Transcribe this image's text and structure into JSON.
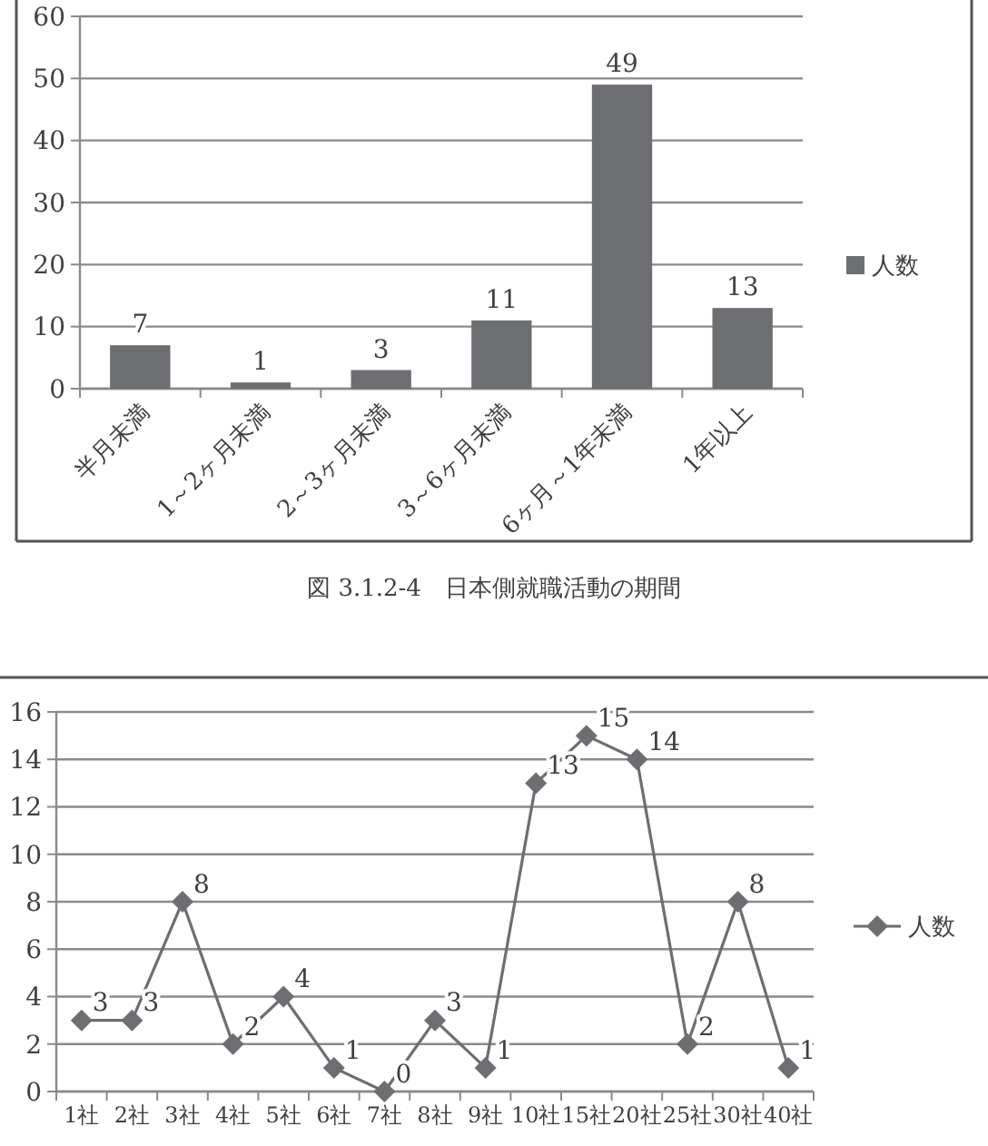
{
  "chart_data": [
    {
      "type": "bar",
      "categories": [
        "半月未満",
        "1～2ヶ月未満",
        "2～3ヶ月未満",
        "3～6ヶ月未満",
        "6ヶ月～1年未満",
        "1年以上"
      ],
      "series": [
        {
          "name": "人数",
          "color": "#6d6e71",
          "values": [
            7,
            1,
            3,
            11,
            49,
            13
          ]
        }
      ],
      "ylim": [
        0,
        60
      ],
      "yticks": [
        0,
        10,
        20,
        30,
        40,
        50,
        60
      ],
      "grid": "y",
      "legend": "right",
      "data_labels": true,
      "annotations": [
        "図 3.1.2-4　日本側就職活動の期間"
      ]
    },
    {
      "type": "line",
      "categories": [
        "1社",
        "2社",
        "3社",
        "4社",
        "5社",
        "6社",
        "7社",
        "8社",
        "9社",
        "10社",
        "15社",
        "20社",
        "25社",
        "30社",
        "40社"
      ],
      "series": [
        {
          "name": "人数",
          "color": "#6d6e71",
          "values": [
            3,
            3,
            8,
            2,
            4,
            1,
            0,
            3,
            1,
            13,
            15,
            14,
            2,
            8,
            1
          ]
        }
      ],
      "ylim": [
        0,
        16
      ],
      "yticks": [
        0,
        2,
        4,
        6,
        8,
        10,
        12,
        14,
        16
      ],
      "grid": "y",
      "legend": "right",
      "marker": "diamond",
      "data_labels": true
    }
  ]
}
